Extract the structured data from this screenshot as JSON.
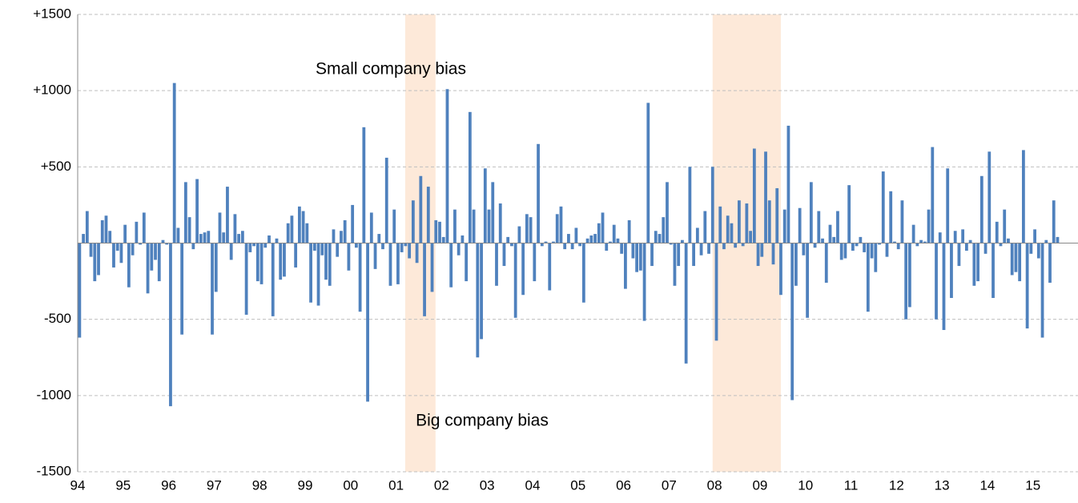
{
  "chart_data": {
    "type": "bar",
    "annotations": [
      "Small company bias",
      "Big company bias"
    ],
    "highlight_ranges": [
      [
        86.4,
        94.4
      ],
      [
        167.5,
        185.5
      ]
    ],
    "categories": [
      "94",
      null,
      null,
      null,
      null,
      null,
      null,
      null,
      null,
      null,
      null,
      null,
      "95",
      null,
      null,
      null,
      null,
      null,
      null,
      null,
      null,
      null,
      null,
      null,
      "96",
      null,
      null,
      null,
      null,
      null,
      null,
      null,
      null,
      null,
      null,
      null,
      "97",
      null,
      null,
      null,
      null,
      null,
      null,
      null,
      null,
      null,
      null,
      null,
      "98",
      null,
      null,
      null,
      null,
      null,
      null,
      null,
      null,
      null,
      null,
      null,
      "99",
      null,
      null,
      null,
      null,
      null,
      null,
      null,
      null,
      null,
      null,
      null,
      "00",
      null,
      null,
      null,
      null,
      null,
      null,
      null,
      null,
      null,
      null,
      null,
      "01",
      null,
      null,
      null,
      null,
      null,
      null,
      null,
      null,
      null,
      null,
      null,
      "02",
      null,
      null,
      null,
      null,
      null,
      null,
      null,
      null,
      null,
      null,
      null,
      "03",
      null,
      null,
      null,
      null,
      null,
      null,
      null,
      null,
      null,
      null,
      null,
      "04",
      null,
      null,
      null,
      null,
      null,
      null,
      null,
      null,
      null,
      null,
      null,
      "05",
      null,
      null,
      null,
      null,
      null,
      null,
      null,
      null,
      null,
      null,
      null,
      "06",
      null,
      null,
      null,
      null,
      null,
      null,
      null,
      null,
      null,
      null,
      null,
      "07",
      null,
      null,
      null,
      null,
      null,
      null,
      null,
      null,
      null,
      null,
      null,
      "08",
      null,
      null,
      null,
      null,
      null,
      null,
      null,
      null,
      null,
      null,
      null,
      "09",
      null,
      null,
      null,
      null,
      null,
      null,
      null,
      null,
      null,
      null,
      null,
      "10",
      null,
      null,
      null,
      null,
      null,
      null,
      null,
      null,
      null,
      null,
      null,
      "11",
      null,
      null,
      null,
      null,
      null,
      null,
      null,
      null,
      null,
      null,
      null,
      "12",
      null,
      null,
      null,
      null,
      null,
      null,
      null,
      null,
      null,
      null,
      null,
      "13",
      null,
      null,
      null,
      null,
      null,
      null,
      null,
      null,
      null,
      null,
      null,
      "14",
      null,
      null,
      null,
      null,
      null,
      null,
      null,
      null,
      null,
      null,
      null,
      "15",
      null,
      null,
      null,
      null,
      null,
      null
    ],
    "values": [
      -620,
      60,
      210,
      -90,
      -250,
      -210,
      150,
      180,
      80,
      -160,
      -50,
      -130,
      120,
      -290,
      -80,
      140,
      -10,
      200,
      -330,
      -180,
      -110,
      -250,
      20,
      -10,
      -1070,
      1050,
      100,
      -600,
      400,
      170,
      -40,
      420,
      60,
      70,
      80,
      -600,
      -320,
      200,
      70,
      370,
      -110,
      190,
      60,
      80,
      -470,
      -60,
      -20,
      -250,
      -270,
      -30,
      50,
      -480,
      30,
      -240,
      -220,
      130,
      180,
      -160,
      240,
      210,
      130,
      -390,
      -50,
      -410,
      -80,
      -240,
      -280,
      90,
      -90,
      80,
      150,
      -180,
      250,
      -30,
      -450,
      760,
      -1040,
      200,
      -170,
      60,
      -40,
      560,
      -280,
      220,
      -270,
      -60,
      -20,
      -100,
      280,
      -130,
      440,
      -480,
      370,
      -320,
      150,
      140,
      40,
      1010,
      -290,
      220,
      -80,
      50,
      -250,
      860,
      220,
      -750,
      -630,
      490,
      220,
      400,
      -280,
      260,
      -150,
      40,
      -20,
      -490,
      110,
      -340,
      190,
      170,
      -250,
      650,
      -20,
      10,
      -310,
      10,
      190,
      240,
      -40,
      60,
      -40,
      100,
      -20,
      -390,
      30,
      50,
      60,
      130,
      200,
      -50,
      10,
      120,
      30,
      -70,
      -300,
      150,
      -100,
      -190,
      -180,
      -510,
      920,
      -150,
      80,
      60,
      170,
      400,
      -10,
      -280,
      -150,
      20,
      -790,
      500,
      -150,
      100,
      -80,
      210,
      -70,
      500,
      -640,
      240,
      -40,
      180,
      130,
      -30,
      280,
      -20,
      260,
      80,
      620,
      -150,
      -90,
      600,
      280,
      -140,
      360,
      -340,
      220,
      770,
      -1030,
      -280,
      230,
      -80,
      -490,
      400,
      -30,
      210,
      30,
      -260,
      120,
      40,
      210,
      -110,
      -100,
      380,
      -50,
      -20,
      40,
      -60,
      -450,
      -100,
      -190,
      -10,
      470,
      -90,
      340,
      10,
      -40,
      280,
      -500,
      -420,
      120,
      -20,
      20,
      10,
      220,
      630,
      -500,
      70,
      -570,
      490,
      -360,
      80,
      -150,
      90,
      -50,
      20,
      -280,
      -250,
      440,
      -70,
      600,
      -360,
      140,
      -20,
      220,
      30,
      -210,
      -190,
      -250,
      610,
      -560,
      -70,
      90,
      -100,
      -620,
      20,
      -260,
      280,
      40
    ],
    "color": "#4f81bd",
    "highlight_color": "#fde9d9",
    "ylim": [
      -1500,
      1500
    ],
    "yticks": [
      {
        "value": 1500,
        "label": "+1500"
      },
      {
        "value": 1000,
        "label": "+1000"
      },
      {
        "value": 500,
        "label": "+500"
      },
      -500,
      -1000,
      -1500
    ],
    "grid": true
  }
}
